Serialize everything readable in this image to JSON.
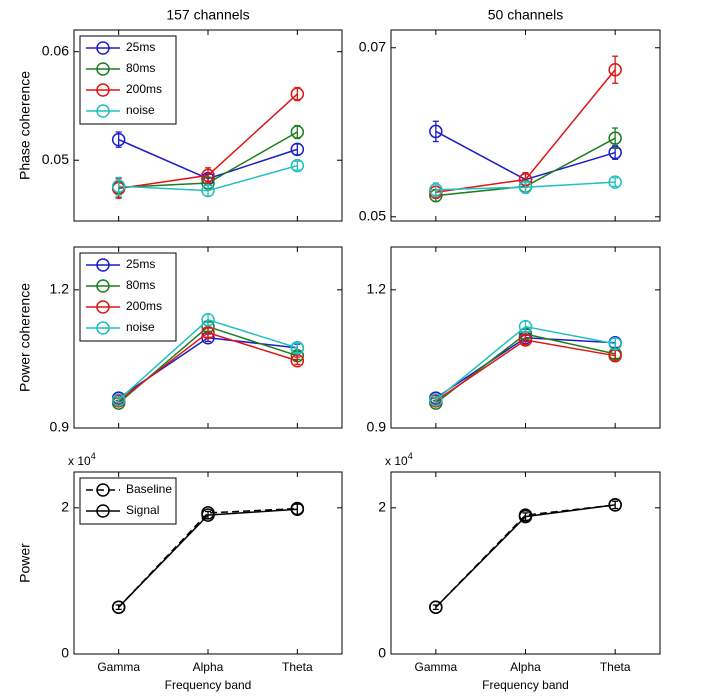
{
  "chart_data": [
    {
      "type": "line",
      "title": "157 channels",
      "ylabel": "Phase coherence",
      "legend": "upper left",
      "ylim": [
        0.0444,
        0.062
      ],
      "yticks": [
        0.05,
        0.06
      ],
      "series": [
        {
          "name": "25ms",
          "color": "#1c1cc8",
          "values": [
            0.0519,
            0.0483,
            0.051
          ],
          "errors": [
            0.0007,
            0.0004,
            0.0005
          ]
        },
        {
          "name": "80ms",
          "color": "#1e7d1e",
          "values": [
            0.0475,
            0.0479,
            0.0526
          ],
          "errors": [
            0.0009,
            0.0005,
            0.0006
          ]
        },
        {
          "name": "200ms",
          "color": "#e01414",
          "values": [
            0.0474,
            0.0486,
            0.0561
          ],
          "errors": [
            0.0009,
            0.0007,
            0.0006
          ]
        },
        {
          "name": "noise",
          "color": "#22c0c0",
          "values": [
            0.0476,
            0.0472,
            0.0495
          ],
          "errors": [
            0.0008,
            0.0005,
            0.0004
          ]
        }
      ]
    },
    {
      "type": "line",
      "title": "50 channels",
      "ylim": [
        0.0495,
        0.0721
      ],
      "yticks": [
        0.05,
        0.07
      ],
      "series": [
        {
          "color": "#1c1cc8",
          "values": [
            0.0601,
            0.0544,
            0.0576
          ],
          "errors": [
            0.0012,
            0.0008,
            0.0008
          ]
        },
        {
          "color": "#1e7d1e",
          "values": [
            0.0525,
            0.0536,
            0.0593
          ],
          "errors": [
            0.0007,
            0.0008,
            0.0012
          ]
        },
        {
          "color": "#e01414",
          "values": [
            0.0529,
            0.0544,
            0.0674
          ],
          "errors": [
            0.0007,
            0.0008,
            0.0016
          ]
        },
        {
          "color": "#22c0c0",
          "values": [
            0.0532,
            0.0535,
            0.0541
          ],
          "errors": [
            0.0008,
            0.0006,
            0.0005
          ]
        }
      ]
    },
    {
      "type": "line",
      "ylabel": "Power coherence",
      "legend": "upper left",
      "ylim": [
        0.9,
        1.293
      ],
      "yticks": [
        0.9,
        1.2
      ],
      "series": [
        {
          "name": "25ms",
          "color": "#1c1cc8",
          "values": [
            0.965,
            1.096,
            1.074
          ],
          "errors": [
            0.006,
            0.008,
            0.008
          ]
        },
        {
          "name": "80ms",
          "color": "#1e7d1e",
          "values": [
            0.954,
            1.12,
            1.057
          ],
          "errors": [
            0.006,
            0.01,
            0.008
          ]
        },
        {
          "name": "200ms",
          "color": "#e01414",
          "values": [
            0.959,
            1.107,
            1.046
          ],
          "errors": [
            0.006,
            0.01,
            0.008
          ]
        },
        {
          "name": "noise",
          "color": "#22c0c0",
          "values": [
            0.961,
            1.135,
            1.074
          ],
          "errors": [
            0.006,
            0.012,
            0.01
          ]
        }
      ]
    },
    {
      "type": "line",
      "ylim": [
        0.9,
        1.293
      ],
      "yticks": [
        0.9,
        1.2
      ],
      "series": [
        {
          "color": "#1c1cc8",
          "values": [
            0.965,
            1.096,
            1.085
          ],
          "errors": [
            0.006,
            0.008,
            0.01
          ]
        },
        {
          "color": "#1e7d1e",
          "values": [
            0.954,
            1.104,
            1.061
          ],
          "errors": [
            0.006,
            0.01,
            0.01
          ]
        },
        {
          "color": "#e01414",
          "values": [
            0.959,
            1.091,
            1.057
          ],
          "errors": [
            0.006,
            0.01,
            0.012
          ]
        },
        {
          "color": "#22c0c0",
          "values": [
            0.961,
            1.12,
            1.083
          ],
          "errors": [
            0.006,
            0.012,
            0.012
          ]
        }
      ]
    },
    {
      "type": "line",
      "ylabel": "Power",
      "xlabel": "Frequency band",
      "legend": "upper left",
      "offset_label": "x 10",
      "offset_exponent": "4",
      "categories": [
        "Gamma",
        "Alpha",
        "Theta"
      ],
      "ylim": [
        0,
        2.49
      ],
      "yticks": [
        0,
        2
      ],
      "series": [
        {
          "name": "Baseline",
          "color": "#000000",
          "linestyle": "dashed",
          "values": [
            0.64,
            1.93,
            1.99
          ]
        },
        {
          "name": "Signal",
          "color": "#000000",
          "linestyle": "solid",
          "values": [
            0.64,
            1.9,
            1.98
          ],
          "errors": [
            0.03,
            0.05,
            0.07
          ]
        }
      ]
    },
    {
      "type": "line",
      "xlabel": "Frequency band",
      "offset_label": "x 10",
      "offset_exponent": "4",
      "categories": [
        "Gamma",
        "Alpha",
        "Theta"
      ],
      "ylim": [
        0,
        2.49
      ],
      "yticks": [
        0,
        2
      ],
      "series": [
        {
          "color": "#000000",
          "linestyle": "dashed",
          "values": [
            0.64,
            1.9,
            2.04
          ]
        },
        {
          "color": "#000000",
          "linestyle": "solid",
          "values": [
            0.64,
            1.88,
            2.04
          ],
          "errors": [
            0.03,
            0.05,
            0.05
          ]
        }
      ]
    }
  ]
}
